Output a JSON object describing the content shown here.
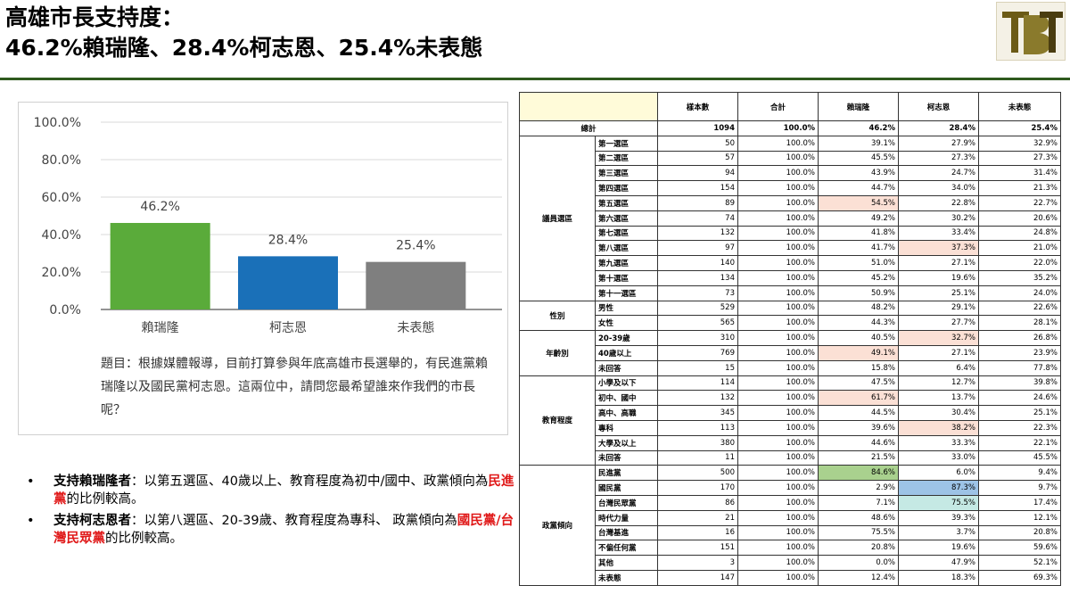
{
  "title": {
    "line1": "高雄市長支持度：",
    "line2": "46.2%賴瑞隆、28.4%柯志恩、25.4%未表態"
  },
  "colors": {
    "title_rule": "#2f5a1e",
    "bar_lai": "#5aab3a",
    "bar_ko": "#1a70b8",
    "bar_none": "#7f7f7f",
    "highlight_red": "#e01919",
    "highlight_pink": "#fbe0d5",
    "highlight_green": "#a9d18e",
    "highlight_blue": "#9dc3e6",
    "highlight_teal": "#c5e9e4"
  },
  "logo": {
    "text": "TBT"
  },
  "chart_data": {
    "type": "bar",
    "categories": [
      "賴瑞隆",
      "柯志恩",
      "未表態"
    ],
    "values": [
      46.2,
      28.4,
      25.4
    ],
    "value_labels": [
      "46.2%",
      "28.4%",
      "25.4%"
    ],
    "colors": [
      "#5aab3a",
      "#1a70b8",
      "#7f7f7f"
    ],
    "ylim": [
      0,
      100
    ],
    "yticks": [
      0,
      20,
      40,
      60,
      80,
      100
    ],
    "ytick_labels": [
      "0.0%",
      "20.0%",
      "40.0%",
      "60.0%",
      "80.0%",
      "100.0%"
    ],
    "grid": true,
    "caption": "題目：根據媒體報導，目前打算參與年底高雄市長選舉的，有民進黨賴瑞隆以及國民黨柯志恩。這兩位中，請問您最希望誰來作我們的市長呢？"
  },
  "bullets": [
    {
      "dot": "•",
      "lead": "支持賴瑞隆者",
      "text_before": "：以第五選區、40歲以上、教育程度為初中/國中、政黨傾向為",
      "red": "民進黨",
      "text_after": "的比例較高。"
    },
    {
      "dot": "•",
      "lead": "支持柯志恩者",
      "text_before": "：以第八選區、20-39歲、教育程度為專科、 政黨傾向為",
      "red": "國民黨/台灣民眾黨",
      "text_after": "的比例較高。"
    }
  ],
  "table": {
    "headers": [
      "樣本數",
      "合計",
      "賴瑞隆",
      "柯志恩",
      "未表態"
    ],
    "total": {
      "label": "總計",
      "values": [
        "1094",
        "100.0%",
        "46.2%",
        "28.4%",
        "25.4%"
      ]
    },
    "groups": [
      {
        "name": "議員選區",
        "rows": [
          {
            "label": "第一選區",
            "values": [
              "50",
              "100.0%",
              "39.1%",
              "27.9%",
              "32.9%"
            ],
            "hl": []
          },
          {
            "label": "第二選區",
            "values": [
              "57",
              "100.0%",
              "45.5%",
              "27.3%",
              "27.3%"
            ],
            "hl": []
          },
          {
            "label": "第三選區",
            "values": [
              "94",
              "100.0%",
              "43.9%",
              "24.7%",
              "31.4%"
            ],
            "hl": []
          },
          {
            "label": "第四選區",
            "values": [
              "154",
              "100.0%",
              "44.7%",
              "34.0%",
              "21.3%"
            ],
            "hl": []
          },
          {
            "label": "第五選區",
            "values": [
              "89",
              "100.0%",
              "54.5%",
              "22.8%",
              "22.7%"
            ],
            "hl": [
              [
                2,
                "pink"
              ]
            ]
          },
          {
            "label": "第六選區",
            "values": [
              "74",
              "100.0%",
              "49.2%",
              "30.2%",
              "20.6%"
            ],
            "hl": []
          },
          {
            "label": "第七選區",
            "values": [
              "132",
              "100.0%",
              "41.8%",
              "33.4%",
              "24.8%"
            ],
            "hl": []
          },
          {
            "label": "第八選區",
            "values": [
              "97",
              "100.0%",
              "41.7%",
              "37.3%",
              "21.0%"
            ],
            "hl": [
              [
                3,
                "pink"
              ]
            ]
          },
          {
            "label": "第九選區",
            "values": [
              "140",
              "100.0%",
              "51.0%",
              "27.1%",
              "22.0%"
            ],
            "hl": []
          },
          {
            "label": "第十選區",
            "values": [
              "134",
              "100.0%",
              "45.2%",
              "19.6%",
              "35.2%"
            ],
            "hl": []
          },
          {
            "label": "第十一選區",
            "values": [
              "73",
              "100.0%",
              "50.9%",
              "25.1%",
              "24.0%"
            ],
            "hl": []
          }
        ]
      },
      {
        "name": "性別",
        "rows": [
          {
            "label": "男性",
            "values": [
              "529",
              "100.0%",
              "48.2%",
              "29.1%",
              "22.6%"
            ],
            "hl": []
          },
          {
            "label": "女性",
            "values": [
              "565",
              "100.0%",
              "44.3%",
              "27.7%",
              "28.1%"
            ],
            "hl": []
          }
        ]
      },
      {
        "name": "年齡別",
        "rows": [
          {
            "label": "20-39歲",
            "values": [
              "310",
              "100.0%",
              "40.5%",
              "32.7%",
              "26.8%"
            ],
            "hl": [
              [
                3,
                "pink"
              ]
            ]
          },
          {
            "label": "40歲以上",
            "values": [
              "769",
              "100.0%",
              "49.1%",
              "27.1%",
              "23.9%"
            ],
            "hl": [
              [
                2,
                "pink"
              ]
            ]
          },
          {
            "label": "未回答",
            "values": [
              "15",
              "100.0%",
              "15.8%",
              "6.4%",
              "77.8%"
            ],
            "hl": []
          }
        ]
      },
      {
        "name": "教育程度",
        "rows": [
          {
            "label": "小學及以下",
            "values": [
              "114",
              "100.0%",
              "47.5%",
              "12.7%",
              "39.8%"
            ],
            "hl": []
          },
          {
            "label": "初中、國中",
            "values": [
              "132",
              "100.0%",
              "61.7%",
              "13.7%",
              "24.6%"
            ],
            "hl": [
              [
                2,
                "pink"
              ]
            ]
          },
          {
            "label": "高中、高職",
            "values": [
              "345",
              "100.0%",
              "44.5%",
              "30.4%",
              "25.1%"
            ],
            "hl": []
          },
          {
            "label": "專科",
            "values": [
              "113",
              "100.0%",
              "39.6%",
              "38.2%",
              "22.3%"
            ],
            "hl": [
              [
                3,
                "pink"
              ]
            ]
          },
          {
            "label": "大學及以上",
            "values": [
              "380",
              "100.0%",
              "44.6%",
              "33.3%",
              "22.1%"
            ],
            "hl": []
          },
          {
            "label": "未回答",
            "values": [
              "11",
              "100.0%",
              "21.5%",
              "33.0%",
              "45.5%"
            ],
            "hl": []
          }
        ]
      },
      {
        "name": "政黨傾向",
        "rows": [
          {
            "label": "民進黨",
            "values": [
              "500",
              "100.0%",
              "84.6%",
              "6.0%",
              "9.4%"
            ],
            "hl": [
              [
                2,
                "green"
              ]
            ]
          },
          {
            "label": "國民黨",
            "values": [
              "170",
              "100.0%",
              "2.9%",
              "87.3%",
              "9.7%"
            ],
            "hl": [
              [
                3,
                "blue"
              ]
            ]
          },
          {
            "label": "台灣民眾黨",
            "values": [
              "86",
              "100.0%",
              "7.1%",
              "75.5%",
              "17.4%"
            ],
            "hl": [
              [
                3,
                "teal"
              ]
            ]
          },
          {
            "label": "時代力量",
            "values": [
              "21",
              "100.0%",
              "48.6%",
              "39.3%",
              "12.1%"
            ],
            "hl": []
          },
          {
            "label": "台灣基進",
            "values": [
              "16",
              "100.0%",
              "75.5%",
              "3.7%",
              "20.8%"
            ],
            "hl": []
          },
          {
            "label": "不偏任何黨",
            "values": [
              "151",
              "100.0%",
              "20.8%",
              "19.6%",
              "59.6%"
            ],
            "hl": []
          },
          {
            "label": "其他",
            "values": [
              "3",
              "100.0%",
              "0.0%",
              "47.9%",
              "52.1%"
            ],
            "hl": []
          },
          {
            "label": "未表態",
            "values": [
              "147",
              "100.0%",
              "12.4%",
              "18.3%",
              "69.3%"
            ],
            "hl": []
          }
        ]
      }
    ]
  }
}
